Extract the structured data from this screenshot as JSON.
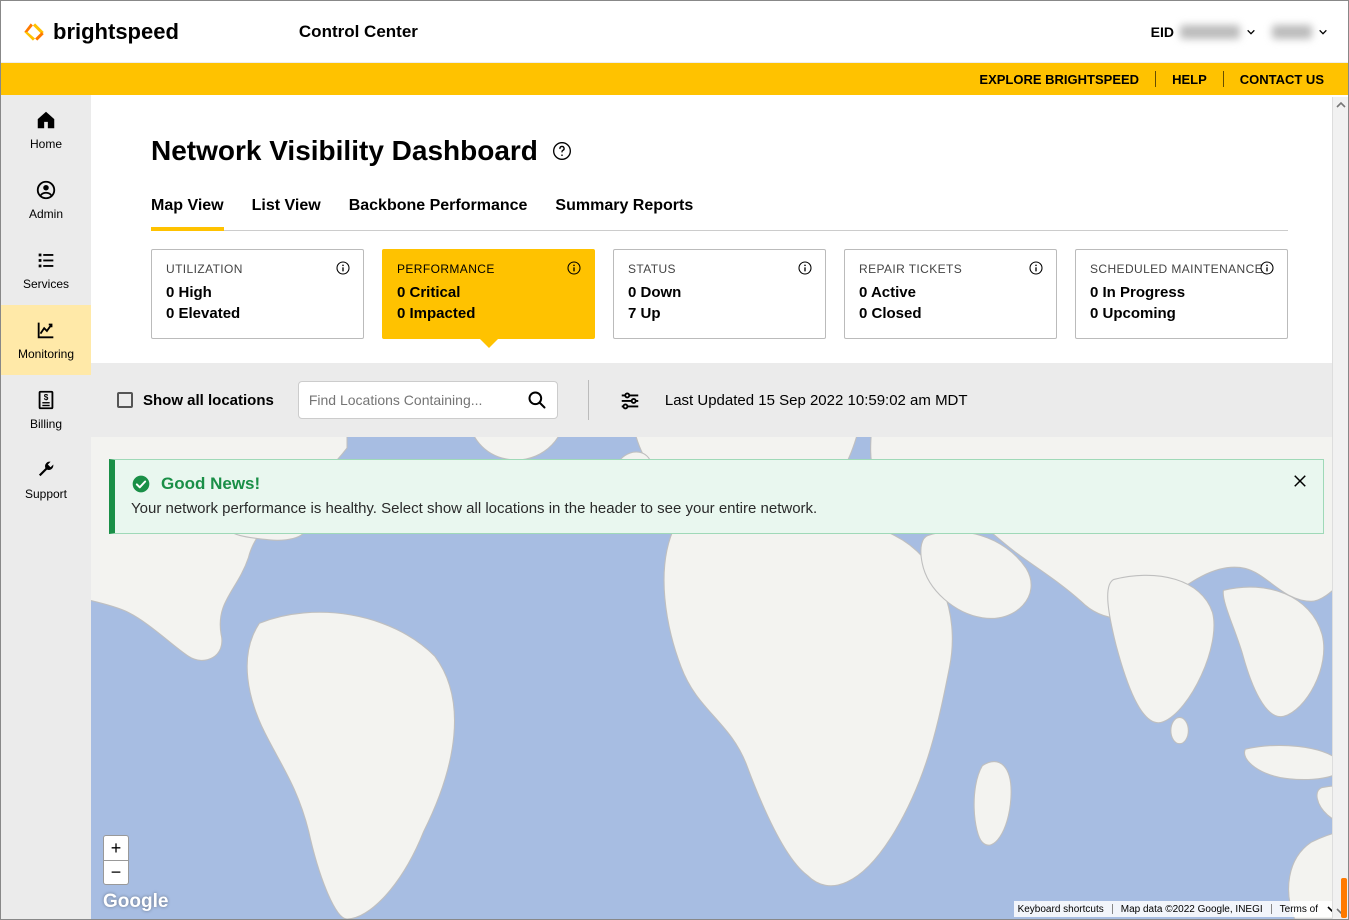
{
  "brand": {
    "name": "brightspeed",
    "product": "Control Center",
    "accent_color": "#ffc200"
  },
  "topbar": {
    "eid_label": "EID",
    "eid_value_redacted": true,
    "user_redacted": true
  },
  "yellowbar": {
    "explore": "EXPLORE BRIGHTSPEED",
    "help": "HELP",
    "contact": "CONTACT US"
  },
  "sidebar": [
    {
      "key": "home",
      "label": "Home",
      "icon": "home-icon",
      "active": false
    },
    {
      "key": "admin",
      "label": "Admin",
      "icon": "user-circle-icon",
      "active": false
    },
    {
      "key": "services",
      "label": "Services",
      "icon": "list-icon",
      "active": false
    },
    {
      "key": "monitoring",
      "label": "Monitoring",
      "icon": "chart-line-icon",
      "active": true
    },
    {
      "key": "billing",
      "label": "Billing",
      "icon": "invoice-icon",
      "active": false
    },
    {
      "key": "support",
      "label": "Support",
      "icon": "wrench-icon",
      "active": false
    }
  ],
  "page": {
    "title": "Network Visibility Dashboard"
  },
  "tabs": [
    {
      "label": "Map View",
      "active": true
    },
    {
      "label": "List View",
      "active": false
    },
    {
      "label": "Backbone Performance",
      "active": false
    },
    {
      "label": "Summary Reports",
      "active": false
    }
  ],
  "cards": [
    {
      "title": "UTILIZATION",
      "lines": [
        "0 High",
        "0 Elevated"
      ],
      "active": false
    },
    {
      "title": "PERFORMANCE",
      "lines": [
        "0 Critical",
        "0 Impacted"
      ],
      "active": true
    },
    {
      "title": "STATUS",
      "lines": [
        "0 Down",
        "7 Up"
      ],
      "active": false
    },
    {
      "title": "REPAIR TICKETS",
      "lines": [
        "0 Active",
        "0 Closed"
      ],
      "active": false
    },
    {
      "title": "SCHEDULED MAINTENANCE",
      "lines": [
        "0 In Progress",
        "0 Upcoming"
      ],
      "active": false
    }
  ],
  "filter": {
    "show_all_label": "Show all locations",
    "search_placeholder": "Find Locations Containing...",
    "last_updated": "Last Updated 15 Sep 2022 10:59:02 am MDT"
  },
  "banner": {
    "title": "Good News!",
    "message": "Your network performance is healthy. Select show all locations in the header to see your entire network.",
    "variant_color": "#1a8f47",
    "bg_color": "#e9f7ef"
  },
  "map": {
    "water_color": "#a7bde2",
    "land_fill": "#f3f3f0",
    "land_stroke": "#bfbfbf",
    "zoom_plus": "+",
    "zoom_minus": "−",
    "google_logo": "Google",
    "footer": {
      "shortcuts": "Keyboard shortcuts",
      "mapdata": "Map data ©2022 Google, INEGI",
      "terms": "Terms of"
    }
  }
}
